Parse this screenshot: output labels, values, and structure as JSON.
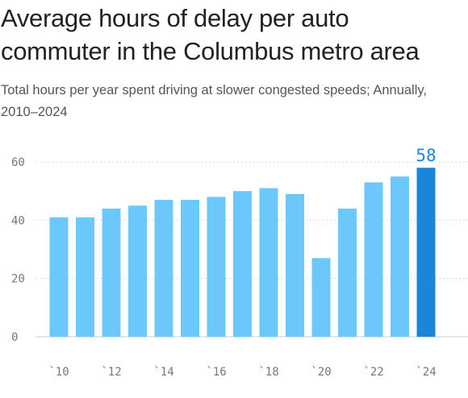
{
  "title": "Average hours of delay per auto commuter in the Columbus metro area",
  "subtitle": "Total hours per year spent driving at slower congested speeds; Annually, 2010–2024",
  "colors": {
    "bar": "#6cc8fb",
    "highlight_bar": "#1a86d9",
    "highlight_label": "#1a86d9",
    "grid": "#d9d9d9",
    "baseline": "#cccccc"
  },
  "chart_data": {
    "type": "bar",
    "categories": [
      "2010",
      "2011",
      "2012",
      "2013",
      "2014",
      "2015",
      "2016",
      "2017",
      "2018",
      "2019",
      "2020",
      "2021",
      "2022",
      "2023",
      "2024"
    ],
    "values": [
      41,
      41,
      44,
      45,
      47,
      47,
      48,
      50,
      51,
      49,
      27,
      44,
      53,
      55,
      58
    ],
    "title": "Average hours of delay per auto commuter in the Columbus metro area",
    "subtitle": "Total hours per year spent driving at slower congested speeds; Annually, 2010–2024",
    "xlabel": "",
    "ylabel": "",
    "ylim": [
      0,
      60
    ],
    "yticks": [
      0,
      20,
      40,
      60
    ],
    "ytick_labels": [
      "0",
      "20",
      "40",
      "60"
    ],
    "xticks": [
      "2010",
      "2012",
      "2014",
      "2016",
      "2018",
      "2020",
      "2022",
      "2024"
    ],
    "xtick_labels": [
      "`10",
      "`12",
      "`14",
      "`16",
      "`18",
      "`20",
      "`22",
      "`24"
    ],
    "highlight": {
      "category": "2024",
      "label": "58"
    },
    "grid": true,
    "legend": "none"
  }
}
